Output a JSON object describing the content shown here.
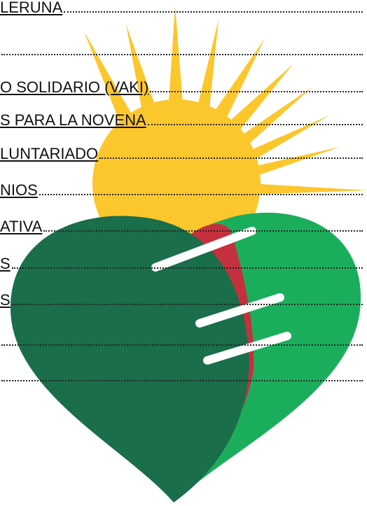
{
  "toc": {
    "entries": [
      "LERUNA",
      "O SOLIDARIO (VAKI)",
      "S PARA LA NOVENA",
      "LUNTARIADO",
      "NIOS",
      "ATIVA",
      "S",
      "S"
    ]
  }
}
